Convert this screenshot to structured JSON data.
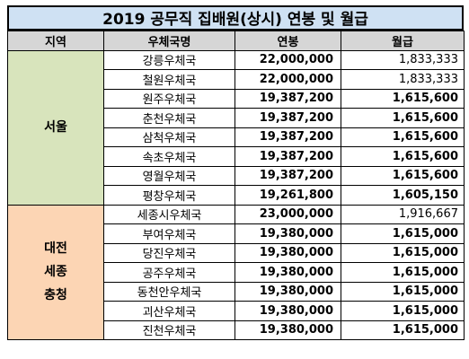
{
  "title": "2019 공무직 집배원(상시) 연봉 및 월급",
  "headers": {
    "region": "지역",
    "office": "우체국명",
    "salary": "연봉",
    "monthly": "월급"
  },
  "regions": [
    {
      "label": "서울",
      "color": "#d8e4bc"
    },
    {
      "label_lines": [
        "대전",
        "세종",
        "충청"
      ],
      "color": "#fcd5b4"
    }
  ],
  "rows": [
    {
      "office": "강릉우체국",
      "salary": "22,000,000",
      "monthly": "1,833,333"
    },
    {
      "office": "철원우체국",
      "salary": "22,000,000",
      "monthly": "1,833,333"
    },
    {
      "office": "원주우체국",
      "salary": "19,387,200",
      "monthly": "1,615,600"
    },
    {
      "office": "춘천우체국",
      "salary": "19,387,200",
      "monthly": "1,615,600"
    },
    {
      "office": "삼척우체국",
      "salary": "19,387,200",
      "monthly": "1,615,600"
    },
    {
      "office": "속초우체국",
      "salary": "19,387,200",
      "monthly": "1,615,600"
    },
    {
      "office": "영월우체국",
      "salary": "19,387,200",
      "monthly": "1,615,600"
    },
    {
      "office": "평창우체국",
      "salary": "19,261,800",
      "monthly": "1,605,150"
    },
    {
      "office": "세종시우체국",
      "salary": "23,000,000",
      "monthly": "1,916,667"
    },
    {
      "office": "부여우체국",
      "salary": "19,380,000",
      "monthly": "1,615,000"
    },
    {
      "office": "당진우체국",
      "salary": "19,380,000",
      "monthly": "1,615,000"
    },
    {
      "office": "공주우체국",
      "salary": "19,380,000",
      "monthly": "1,615,000"
    },
    {
      "office": "동천안우체국",
      "salary": "19,380,000",
      "monthly": "1,615,000"
    },
    {
      "office": "괴산우체국",
      "salary": "19,380,000",
      "monthly": "1,615,000"
    },
    {
      "office": "진천우체국",
      "salary": "19,380,000",
      "monthly": "1,615,000"
    }
  ]
}
